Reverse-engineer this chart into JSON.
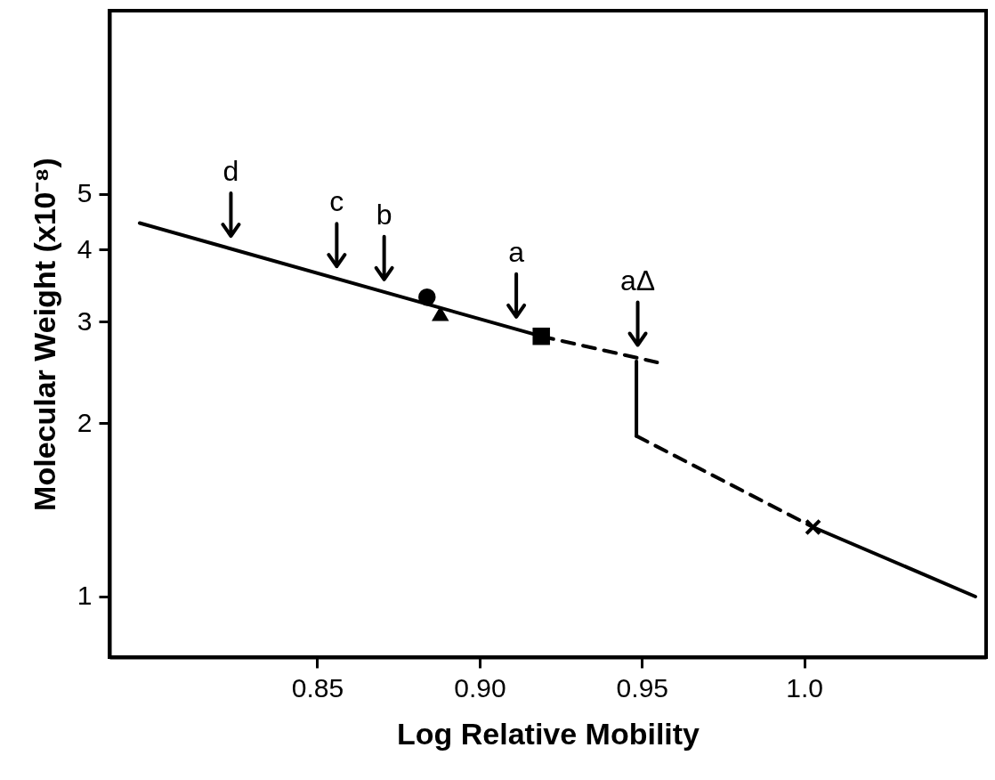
{
  "chart_data": {
    "type": "line",
    "xlabel": "Log Relative Mobility",
    "ylabel": "Molecular Weight (x10⁻⁸)",
    "log": "y",
    "grid": false,
    "xlim": [
      0.786,
      1.056
    ],
    "xticks": [
      0.85,
      {
        "value": 0.9,
        "label": "0.90"
      },
      0.95,
      {
        "value": 1,
        "label": "1.0"
      }
    ],
    "ylim": [
      0.785,
      10.4
    ],
    "yticks": [
      1,
      2,
      3,
      4,
      5
    ],
    "series": [
      {
        "line_style": "solid",
        "color": "#000000",
        "x": [
          0.7953,
          0.919
        ],
        "values": [
          4.45,
          2.83
        ]
      },
      {
        "line_style": "dashed",
        "color": "#000000",
        "x": [
          0.919,
          0.9547
        ],
        "values": [
          2.83,
          2.55
        ]
      },
      {
        "line_style": "dashed",
        "color": "#000000",
        "x": [
          0.9483,
          1.0027
        ],
        "values": [
          1.9,
          1.32
        ]
      },
      {
        "line_style": "solid",
        "color": "#000000",
        "x": [
          1.0027,
          1.0527
        ],
        "values": [
          1.32,
          1.0
        ]
      },
      {
        "line_style": "solid",
        "color": "#000000",
        "x": [
          0.9483,
          0.9483
        ],
        "values": [
          2.56,
          1.9
        ]
      },
      {
        "type": "scatter",
        "marker": "circle",
        "color": "#000000",
        "x": [
          0.8838
        ],
        "values": [
          3.31
        ]
      },
      {
        "type": "scatter",
        "marker": "triangle",
        "color": "#000000",
        "x": [
          0.8879
        ],
        "values": [
          3.1
        ]
      },
      {
        "type": "scatter",
        "marker": "square",
        "color": "#000000",
        "x": [
          0.919
        ],
        "values": [
          2.83
        ]
      },
      {
        "type": "scatter",
        "marker": "cross",
        "color": "#000000",
        "x": [
          1.0027
        ],
        "values": [
          1.32
        ]
      }
    ],
    "annotations": [
      {
        "text": "d",
        "x": 0.8234,
        "y": 4.02
      },
      {
        "text": "c",
        "x": 0.856,
        "y": 3.56
      },
      {
        "text": "b",
        "x": 0.8706,
        "y": 3.38
      },
      {
        "text": "a",
        "x": 0.9113,
        "y": 2.91
      },
      {
        "text": "aΔ",
        "x": 0.9487,
        "y": 2.6
      }
    ]
  }
}
